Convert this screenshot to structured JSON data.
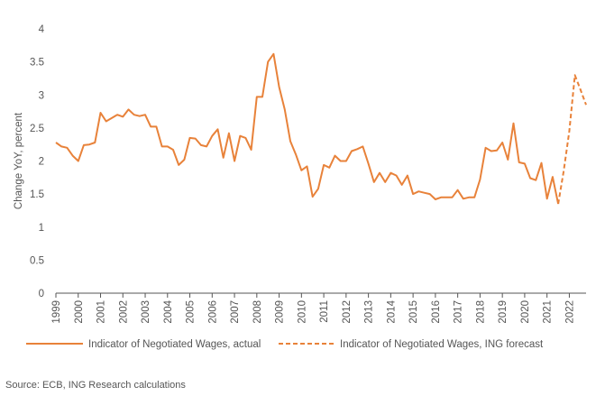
{
  "source": "Source: ECB, ING Research calculations",
  "colors": {
    "line": "#E8823A",
    "axis": "#555555",
    "grid": "#d9d9d9"
  },
  "chart_data": {
    "type": "line",
    "ylabel": "Change YoY, percent",
    "xlabel": "",
    "ylim": [
      0,
      4
    ],
    "yticks": [
      0,
      0.5,
      1,
      1.5,
      2,
      2.5,
      3,
      3.5,
      4
    ],
    "xlim": [
      1999,
      2022.75
    ],
    "xtick_labels": [
      "1999",
      "2000",
      "2001",
      "2002",
      "2003",
      "2004",
      "2005",
      "2006",
      "2007",
      "2008",
      "2009",
      "2010",
      "2011",
      "2012",
      "2013",
      "2014",
      "2015",
      "2016",
      "2017",
      "2018",
      "2019",
      "2020",
      "2021",
      "2022"
    ],
    "grid": false,
    "legend_position": "bottom",
    "series": [
      {
        "name": "Indicator of Negotiated Wages, actual",
        "style": "solid",
        "x": [
          1999.0,
          1999.25,
          1999.5,
          1999.75,
          2000.0,
          2000.25,
          2000.5,
          2000.75,
          2001.0,
          2001.25,
          2001.5,
          2001.75,
          2002.0,
          2002.25,
          2002.5,
          2002.75,
          2003.0,
          2003.25,
          2003.5,
          2003.75,
          2004.0,
          2004.25,
          2004.5,
          2004.75,
          2005.0,
          2005.25,
          2005.5,
          2005.75,
          2006.0,
          2006.25,
          2006.5,
          2006.75,
          2007.0,
          2007.25,
          2007.5,
          2007.75,
          2008.0,
          2008.25,
          2008.5,
          2008.75,
          2009.0,
          2009.25,
          2009.5,
          2009.75,
          2010.0,
          2010.25,
          2010.5,
          2010.75,
          2011.0,
          2011.25,
          2011.5,
          2011.75,
          2012.0,
          2012.25,
          2012.5,
          2012.75,
          2013.0,
          2013.25,
          2013.5,
          2013.75,
          2014.0,
          2014.25,
          2014.5,
          2014.75,
          2015.0,
          2015.25,
          2015.5,
          2015.75,
          2016.0,
          2016.25,
          2016.5,
          2016.75,
          2017.0,
          2017.25,
          2017.5,
          2017.75,
          2018.0,
          2018.25,
          2018.5,
          2018.75,
          2019.0,
          2019.25,
          2019.5,
          2019.75,
          2020.0,
          2020.25,
          2020.5,
          2020.75,
          2021.0,
          2021.25,
          2021.5
        ],
        "y": [
          2.28,
          2.22,
          2.2,
          2.08,
          2.0,
          2.24,
          2.25,
          2.28,
          2.73,
          2.6,
          2.65,
          2.7,
          2.67,
          2.78,
          2.7,
          2.68,
          2.7,
          2.52,
          2.52,
          2.22,
          2.22,
          2.17,
          1.94,
          2.02,
          2.35,
          2.34,
          2.24,
          2.22,
          2.38,
          2.48,
          2.05,
          2.42,
          2.0,
          2.38,
          2.35,
          2.17,
          2.97,
          2.97,
          3.5,
          3.62,
          3.12,
          2.78,
          2.3,
          2.1,
          1.86,
          1.92,
          1.46,
          1.58,
          1.94,
          1.9,
          2.08,
          2.0,
          2.0,
          2.15,
          2.18,
          2.22,
          1.96,
          1.68,
          1.82,
          1.68,
          1.82,
          1.78,
          1.64,
          1.78,
          1.5,
          1.54,
          1.52,
          1.5,
          1.42,
          1.45,
          1.45,
          1.45,
          1.56,
          1.43,
          1.45,
          1.45,
          1.72,
          2.2,
          2.15,
          2.16,
          2.28,
          2.02,
          2.57,
          1.98,
          1.96,
          1.74,
          1.71,
          1.97,
          1.43,
          1.76,
          1.35
        ]
      },
      {
        "name": "Indicator of Negotiated Wages, ING forecast",
        "style": "dashed",
        "x": [
          2021.5,
          2021.75,
          2022.0,
          2022.25,
          2022.5,
          2022.75
        ],
        "y": [
          1.35,
          1.85,
          2.45,
          3.3,
          3.08,
          2.85
        ]
      }
    ]
  }
}
